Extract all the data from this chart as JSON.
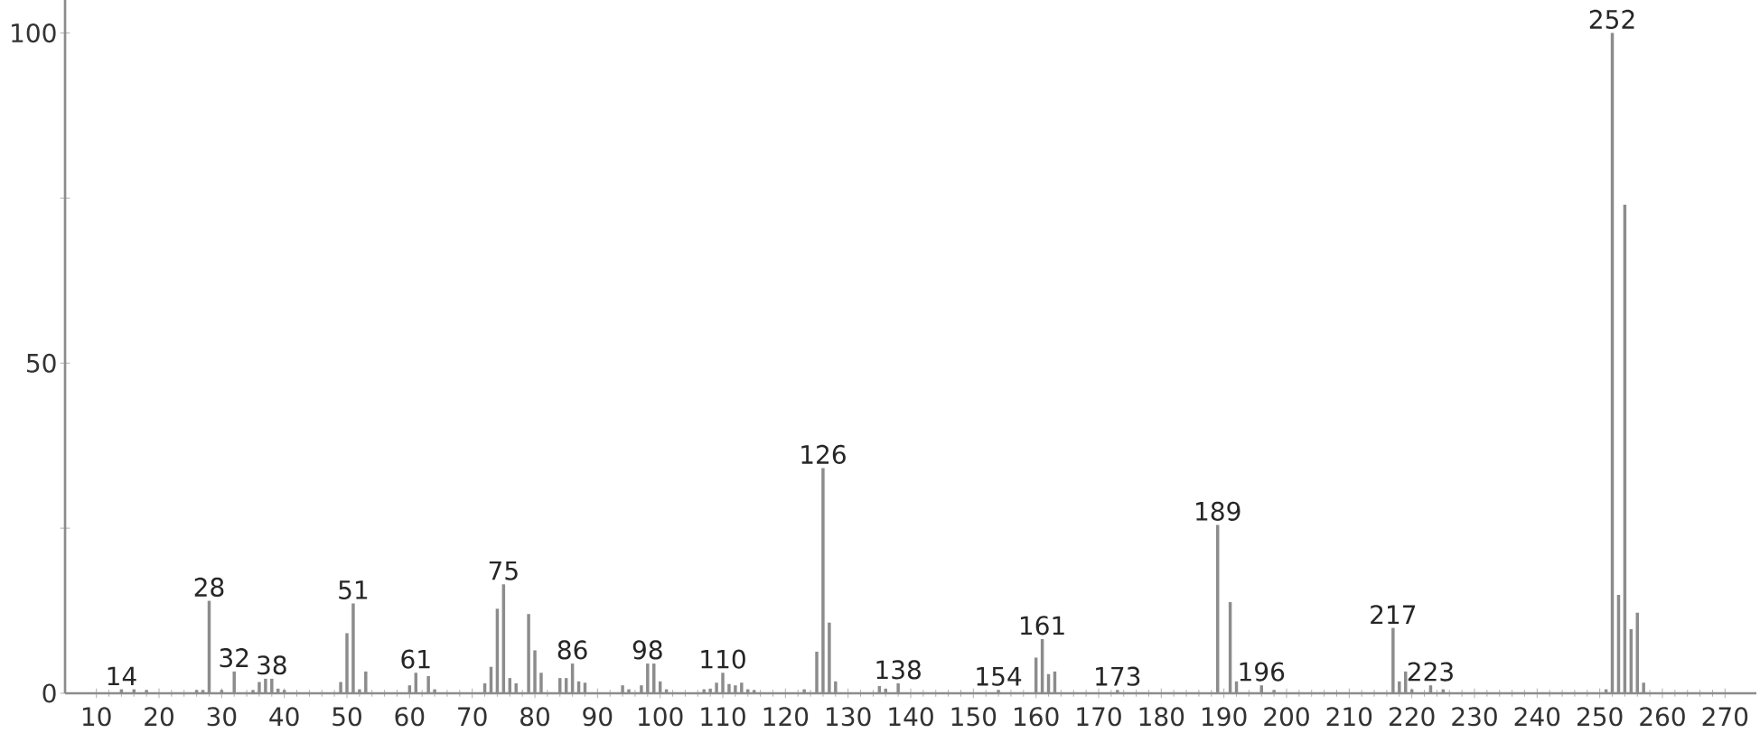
{
  "chart_data": {
    "type": "bar",
    "x": [
      14,
      16,
      18,
      26,
      27,
      28,
      30,
      32,
      35,
      36,
      37,
      38,
      39,
      40,
      49,
      50,
      51,
      52,
      53,
      60,
      61,
      63,
      64,
      72,
      73,
      74,
      75,
      76,
      77,
      79,
      80,
      81,
      84,
      85,
      86,
      87,
      88,
      94,
      95,
      97,
      98,
      99,
      100,
      101,
      107,
      108,
      109,
      110,
      111,
      112,
      113,
      114,
      115,
      123,
      125,
      126,
      127,
      128,
      135,
      136,
      138,
      154,
      160,
      161,
      162,
      163,
      173,
      189,
      191,
      192,
      196,
      198,
      217,
      218,
      219,
      220,
      223,
      225,
      251,
      252,
      253,
      254,
      255,
      256,
      257
    ],
    "values": [
      0.6,
      0.6,
      0.5,
      0.5,
      0.5,
      14,
      0.5,
      3.3,
      0.5,
      1.7,
      2.2,
      2.2,
      0.7,
      0.5,
      1.7,
      9.1,
      13.6,
      0.6,
      3.3,
      1.2,
      3.1,
      2.6,
      0.6,
      1.5,
      4,
      12.8,
      16.5,
      2.3,
      1.5,
      12,
      6.5,
      3.1,
      2.3,
      2.3,
      4.5,
      1.8,
      1.6,
      1.2,
      0.6,
      1.2,
      4.5,
      4.5,
      1.8,
      0.6,
      0.6,
      0.7,
      1.6,
      3.1,
      1.4,
      1.2,
      1.6,
      0.6,
      0.5,
      0.6,
      6.3,
      34.1,
      10.7,
      1.8,
      1.1,
      0.7,
      1.5,
      0.5,
      5.4,
      8.2,
      2.9,
      3.3,
      0.5,
      25.5,
      13.8,
      1.8,
      1.2,
      0.5,
      9.9,
      1.8,
      3.3,
      0.6,
      1.2,
      0.6,
      0.6,
      100,
      14.9,
      74,
      9.7,
      12.2,
      1.6
    ],
    "color": "#8c8c8c",
    "annotations": [
      {
        "text": "14",
        "x": 14,
        "y": 0.6
      },
      {
        "text": "28",
        "x": 28,
        "y": 14
      },
      {
        "text": "32",
        "x": 32,
        "y": 3.3
      },
      {
        "text": "38",
        "x": 38,
        "y": 2.2
      },
      {
        "text": "51",
        "x": 51,
        "y": 13.6
      },
      {
        "text": "61",
        "x": 61,
        "y": 3.1
      },
      {
        "text": "75",
        "x": 75,
        "y": 16.5
      },
      {
        "text": "86",
        "x": 86,
        "y": 4.5
      },
      {
        "text": "98",
        "x": 98,
        "y": 4.5
      },
      {
        "text": "110",
        "x": 110,
        "y": 3.1
      },
      {
        "text": "126",
        "x": 126,
        "y": 34.1
      },
      {
        "text": "138",
        "x": 138,
        "y": 1.5
      },
      {
        "text": "154",
        "x": 154,
        "y": 0.5
      },
      {
        "text": "161",
        "x": 161,
        "y": 8.2
      },
      {
        "text": "173",
        "x": 173,
        "y": 0.5
      },
      {
        "text": "189",
        "x": 189,
        "y": 25.5
      },
      {
        "text": "196",
        "x": 196,
        "y": 1.2
      },
      {
        "text": "217",
        "x": 217,
        "y": 9.9
      },
      {
        "text": "223",
        "x": 223,
        "y": 1.2
      },
      {
        "text": "252",
        "x": 252,
        "y": 100
      }
    ],
    "xlim": [
      5,
      275
    ],
    "ylim": [
      0,
      105
    ],
    "xticks": [
      10,
      20,
      30,
      40,
      50,
      60,
      70,
      80,
      90,
      100,
      110,
      120,
      130,
      140,
      150,
      160,
      170,
      180,
      190,
      200,
      210,
      220,
      230,
      240,
      250,
      260,
      270
    ],
    "yticks": [
      0,
      {
        "value": 25,
        "label": null
      },
      50,
      {
        "value": 75,
        "label": null
      },
      100
    ],
    "grid": false
  }
}
